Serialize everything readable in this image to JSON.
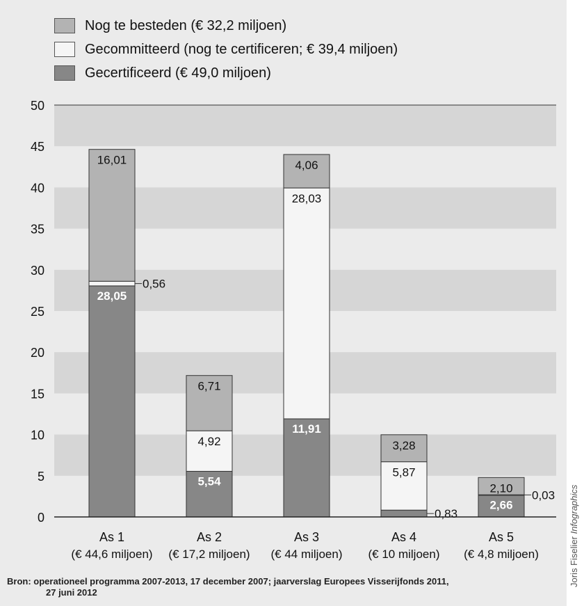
{
  "legend": [
    {
      "label": "Nog te besteden (€ 32,2 miljoen)",
      "color": "#b3b3b3"
    },
    {
      "label": "Gecommitteerd (nog te certificeren; € 39,4 miljoen)",
      "color": "#f5f5f5"
    },
    {
      "label": "Gecertificeerd (€ 49,0 miljoen)",
      "color": "#878787"
    }
  ],
  "chart_data": {
    "type": "bar",
    "stacked": true,
    "categories": [
      "As 1",
      "As 2",
      "As 3",
      "As 4",
      "As 5"
    ],
    "category_sublabels": [
      "(€ 44,6 miljoen)",
      "(€ 17,2 miljoen)",
      "(€ 44 miljoen)",
      "(€ 10 miljoen)",
      "(€ 4,8 miljoen)"
    ],
    "series": [
      {
        "name": "Gecertificeerd (€ 49,0 miljoen)",
        "color": "#878787",
        "values": [
          28.05,
          5.54,
          11.91,
          0.83,
          2.66
        ],
        "labels": [
          "28,05",
          "5,54",
          "11,91",
          "0,83",
          "2,66"
        ]
      },
      {
        "name": "Gecommitteerd (nog te certificeren; € 39,4 miljoen)",
        "color": "#f5f5f5",
        "values": [
          0.56,
          4.92,
          28.03,
          5.87,
          0.03
        ],
        "labels": [
          "0,56",
          "4,92",
          "28,03",
          "5,87",
          "0,03"
        ]
      },
      {
        "name": "Nog te besteden (€ 32,2 miljoen)",
        "color": "#b3b3b3",
        "values": [
          16.01,
          6.71,
          4.06,
          3.28,
          2.1
        ],
        "labels": [
          "16,01",
          "6,71",
          "4,06",
          "3,28",
          "2,10"
        ]
      }
    ],
    "yticks": [
      0,
      5,
      10,
      15,
      20,
      25,
      30,
      35,
      40,
      45,
      50
    ],
    "ylim": [
      0,
      50
    ],
    "grid": "alternating bands",
    "legend_position": "top-left"
  },
  "source_line1": "Bron: operationeel programma 2007-2013, 17 december 2007; jaarverslag Europees Visserijfonds 2011,",
  "source_line2": "27 juni 2012",
  "credit_name": "Joris Fiselier ",
  "credit_word": "Infographics"
}
